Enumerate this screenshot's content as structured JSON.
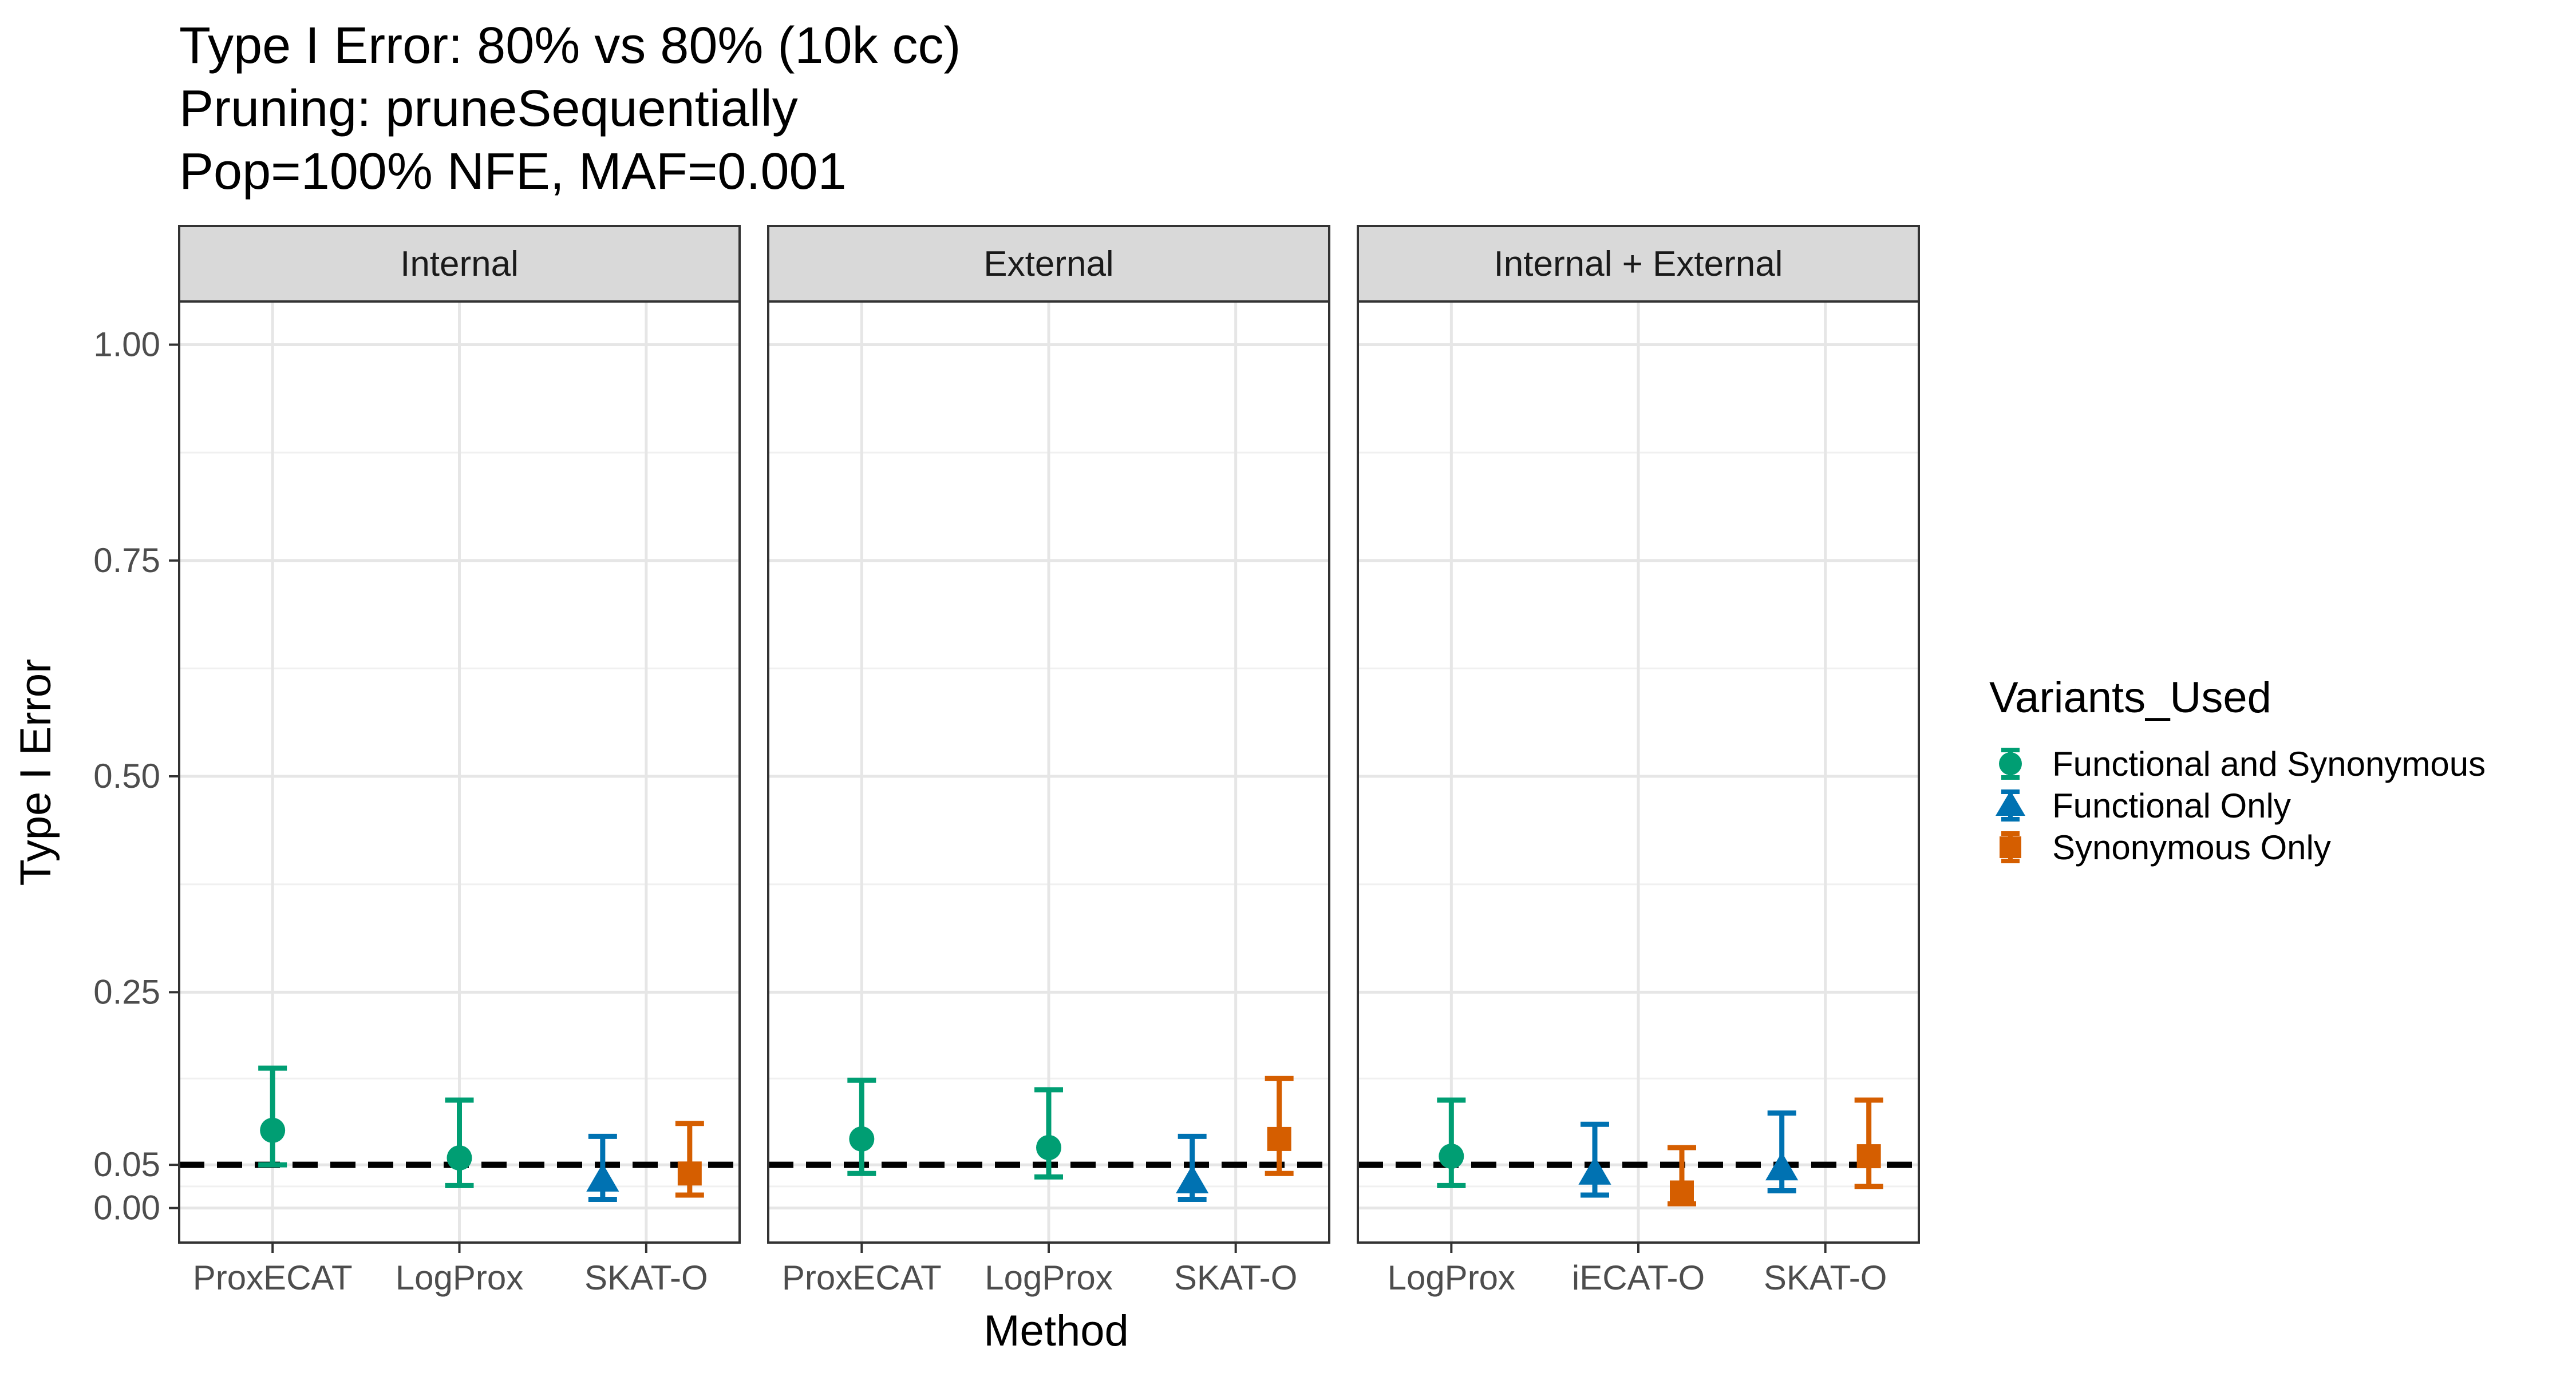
{
  "title_lines": [
    "Type I Error: 80% vs 80% (10k cc)",
    "Pruning: pruneSequentially",
    "Pop=100% NFE, MAF=0.001"
  ],
  "colors": {
    "Functional and Synonymous": "#009E73",
    "Functional Only": "#0072B2",
    "Synonymous Only": "#D55E00"
  },
  "chart_data": {
    "type": "scatter",
    "title": "Type I Error: 80% vs 80% (10k cc)\nPruning: pruneSequentially\nPop=100% NFE, MAF=0.001",
    "xlabel": "Method",
    "ylabel": "Type I Error",
    "ylim": [
      -0.04,
      1.05
    ],
    "y_ticks": [
      0.0,
      0.05,
      0.25,
      0.5,
      0.75,
      1.0
    ],
    "y_tick_labels": [
      "0.00",
      "0.05",
      "0.25",
      "0.50",
      "0.75",
      "1.00"
    ],
    "reference_line": 0.05,
    "grid": true,
    "legend": {
      "title": "Variants_Used",
      "placement": "right",
      "entries": [
        {
          "name": "Functional and Synonymous",
          "shape": "circle"
        },
        {
          "name": "Functional Only",
          "shape": "triangle"
        },
        {
          "name": "Synonymous Only",
          "shape": "square"
        }
      ]
    },
    "panels": [
      {
        "name": "Internal",
        "categories": [
          "ProxECAT",
          "LogProx",
          "SKAT-O"
        ],
        "points": [
          {
            "method": "ProxECAT",
            "group": "Functional and Synonymous",
            "offset": 0,
            "y": 0.09,
            "lo": 0.05,
            "hi": 0.162
          },
          {
            "method": "LogProx",
            "group": "Functional and Synonymous",
            "offset": 0,
            "y": 0.058,
            "lo": 0.026,
            "hi": 0.125
          },
          {
            "method": "SKAT-O",
            "group": "Functional Only",
            "offset": -1,
            "y": 0.032,
            "lo": 0.01,
            "hi": 0.083
          },
          {
            "method": "SKAT-O",
            "group": "Synonymous Only",
            "offset": 1,
            "y": 0.04,
            "lo": 0.015,
            "hi": 0.098
          }
        ]
      },
      {
        "name": "External",
        "categories": [
          "ProxECAT",
          "LogProx",
          "SKAT-O"
        ],
        "points": [
          {
            "method": "ProxECAT",
            "group": "Functional and Synonymous",
            "offset": 0,
            "y": 0.08,
            "lo": 0.04,
            "hi": 0.148
          },
          {
            "method": "LogProx",
            "group": "Functional and Synonymous",
            "offset": 0,
            "y": 0.07,
            "lo": 0.036,
            "hi": 0.137
          },
          {
            "method": "SKAT-O",
            "group": "Functional Only",
            "offset": -1,
            "y": 0.03,
            "lo": 0.01,
            "hi": 0.083
          },
          {
            "method": "SKAT-O",
            "group": "Synonymous Only",
            "offset": 1,
            "y": 0.08,
            "lo": 0.04,
            "hi": 0.15
          }
        ]
      },
      {
        "name": "Internal + External",
        "categories": [
          "LogProx",
          "iECAT-O",
          "SKAT-O"
        ],
        "points": [
          {
            "method": "LogProx",
            "group": "Functional and Synonymous",
            "offset": 0,
            "y": 0.06,
            "lo": 0.026,
            "hi": 0.125
          },
          {
            "method": "iECAT-O",
            "group": "Functional Only",
            "offset": -1,
            "y": 0.04,
            "lo": 0.015,
            "hi": 0.097
          },
          {
            "method": "iECAT-O",
            "group": "Synonymous Only",
            "offset": 1,
            "y": 0.018,
            "lo": 0.005,
            "hi": 0.07
          },
          {
            "method": "SKAT-O",
            "group": "Functional Only",
            "offset": -1,
            "y": 0.045,
            "lo": 0.02,
            "hi": 0.11
          },
          {
            "method": "SKAT-O",
            "group": "Synonymous Only",
            "offset": 1,
            "y": 0.06,
            "lo": 0.025,
            "hi": 0.125
          }
        ]
      }
    ]
  }
}
